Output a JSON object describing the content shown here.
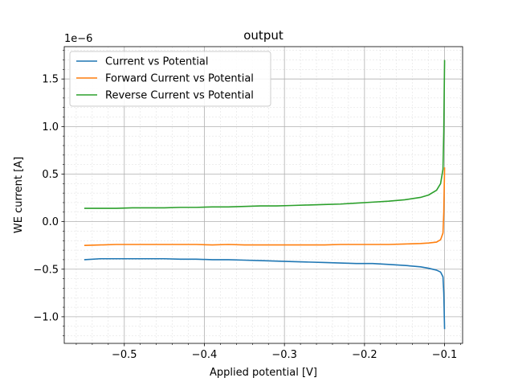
{
  "chart_data": {
    "type": "line",
    "title": "output",
    "xlabel": "Applied potential [V]",
    "ylabel": "WE current [A]",
    "y_offset_label": "1e−6",
    "xlim": [
      -0.575,
      -0.0775
    ],
    "ylim": [
      -1.28,
      1.84
    ],
    "y_scale_factor": 1e-06,
    "x_ticks": [
      -0.5,
      -0.4,
      -0.3,
      -0.2,
      -0.1
    ],
    "x_tick_labels": [
      "−0.5",
      "−0.4",
      "−0.3",
      "−0.2",
      "−0.1"
    ],
    "y_ticks": [
      -1.0,
      -0.5,
      0.0,
      0.5,
      1.0,
      1.5
    ],
    "y_tick_labels": [
      "−1.0",
      "−0.5",
      "0.0",
      "0.5",
      "1.0",
      "1.5"
    ],
    "grid": true,
    "minor_grid": true,
    "legend_position": "top-left",
    "series": [
      {
        "name": "Current vs Potential",
        "color": "#1f77b4",
        "x": [
          -0.55,
          -0.53,
          -0.51,
          -0.49,
          -0.47,
          -0.45,
          -0.43,
          -0.41,
          -0.39,
          -0.37,
          -0.35,
          -0.33,
          -0.31,
          -0.29,
          -0.27,
          -0.25,
          -0.23,
          -0.21,
          -0.19,
          -0.17,
          -0.15,
          -0.13,
          -0.12,
          -0.11,
          -0.105,
          -0.102,
          -0.101,
          -0.1
        ],
        "y": [
          -0.4,
          -0.39,
          -0.39,
          -0.39,
          -0.39,
          -0.39,
          -0.395,
          -0.395,
          -0.4,
          -0.4,
          -0.405,
          -0.41,
          -0.415,
          -0.42,
          -0.425,
          -0.43,
          -0.435,
          -0.44,
          -0.44,
          -0.45,
          -0.46,
          -0.475,
          -0.49,
          -0.51,
          -0.53,
          -0.58,
          -0.75,
          -1.13
        ]
      },
      {
        "name": "Forward Current vs Potential",
        "color": "#ff7f0e",
        "x": [
          -0.55,
          -0.53,
          -0.51,
          -0.49,
          -0.47,
          -0.45,
          -0.43,
          -0.41,
          -0.39,
          -0.37,
          -0.35,
          -0.33,
          -0.31,
          -0.29,
          -0.27,
          -0.25,
          -0.23,
          -0.21,
          -0.19,
          -0.17,
          -0.15,
          -0.13,
          -0.12,
          -0.11,
          -0.105,
          -0.102,
          -0.101,
          -0.1
        ],
        "y": [
          -0.25,
          -0.245,
          -0.24,
          -0.24,
          -0.24,
          -0.24,
          -0.24,
          -0.24,
          -0.245,
          -0.24,
          -0.245,
          -0.245,
          -0.245,
          -0.245,
          -0.245,
          -0.245,
          -0.24,
          -0.24,
          -0.24,
          -0.24,
          -0.235,
          -0.23,
          -0.225,
          -0.215,
          -0.19,
          -0.12,
          0.1,
          0.57
        ]
      },
      {
        "name": "Reverse Current vs Potential",
        "color": "#2ca02c",
        "x": [
          -0.55,
          -0.53,
          -0.51,
          -0.49,
          -0.47,
          -0.45,
          -0.43,
          -0.41,
          -0.39,
          -0.37,
          -0.35,
          -0.33,
          -0.31,
          -0.29,
          -0.27,
          -0.25,
          -0.23,
          -0.21,
          -0.19,
          -0.17,
          -0.15,
          -0.13,
          -0.12,
          -0.11,
          -0.105,
          -0.102,
          -0.101,
          -0.1
        ],
        "y": [
          0.14,
          0.14,
          0.14,
          0.145,
          0.145,
          0.145,
          0.15,
          0.15,
          0.155,
          0.155,
          0.16,
          0.165,
          0.165,
          0.17,
          0.175,
          0.18,
          0.185,
          0.195,
          0.205,
          0.215,
          0.23,
          0.255,
          0.28,
          0.33,
          0.4,
          0.55,
          0.95,
          1.7
        ]
      }
    ]
  }
}
